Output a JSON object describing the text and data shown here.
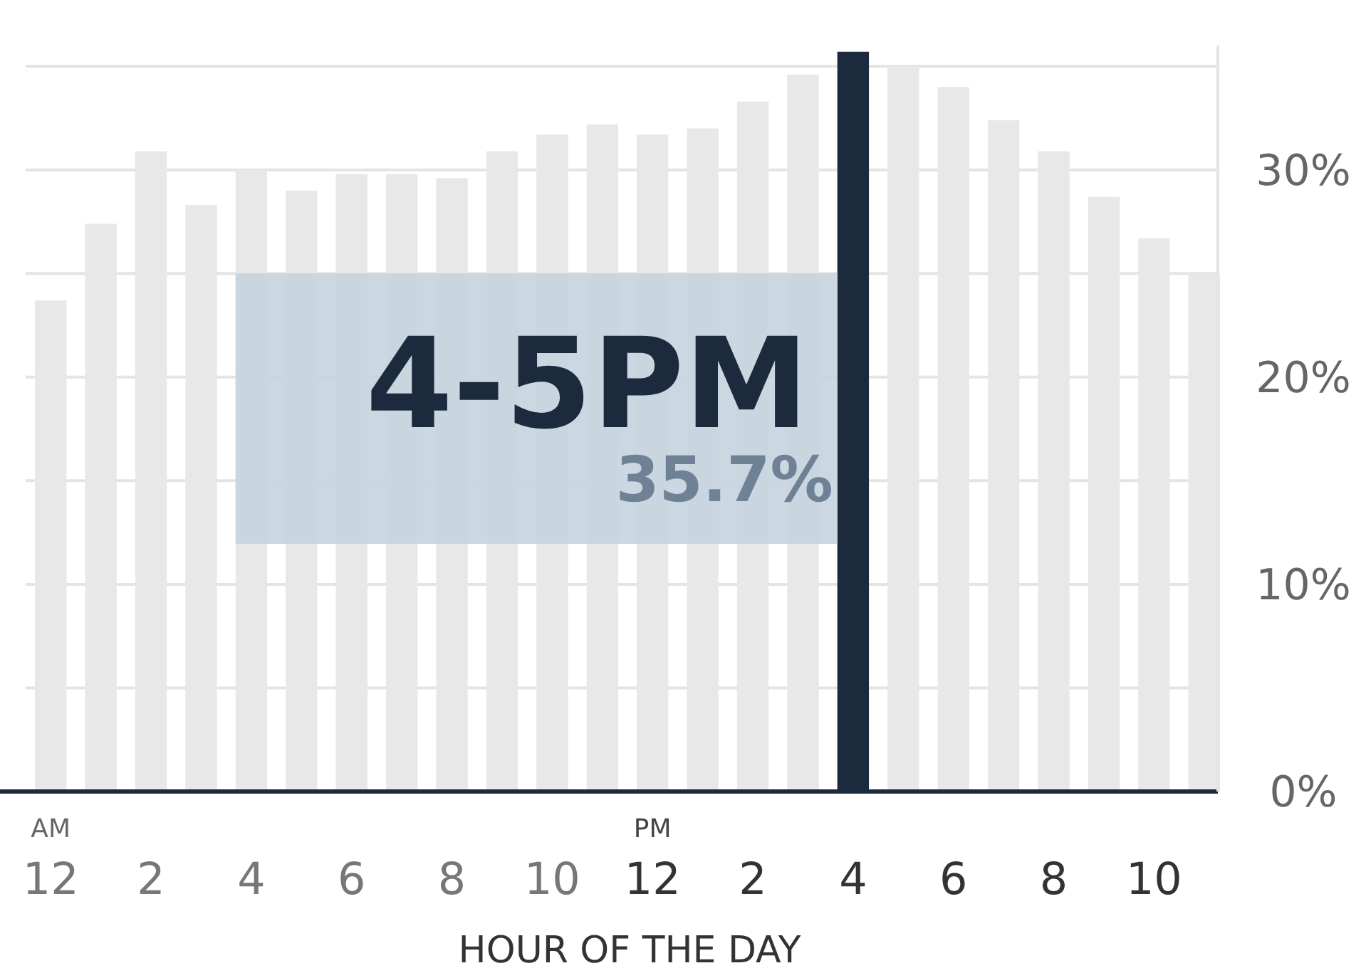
{
  "chart_data": {
    "type": "bar",
    "xlabel": "HOUR OF THE DAY",
    "categories": [
      "12",
      null,
      "2",
      null,
      "4",
      null,
      "6",
      null,
      "8",
      null,
      "10",
      null,
      "12",
      null,
      "2",
      null,
      "4",
      null,
      "6",
      null,
      "8",
      null,
      "10",
      null
    ],
    "values": [
      23.7,
      27.4,
      30.9,
      28.3,
      30.0,
      29.0,
      29.8,
      29.8,
      29.6,
      30.9,
      31.7,
      32.2,
      31.7,
      32.0,
      33.3,
      34.6,
      35.7,
      35.0,
      34.0,
      32.4,
      30.9,
      28.7,
      26.7,
      25.0
    ],
    "colors": [
      "#e8e8e8",
      "#e8e8e8",
      "#e8e8e8",
      "#e8e8e8",
      "#e8e8e8",
      "#e8e8e8",
      "#e8e8e8",
      "#e8e8e8",
      "#e8e8e8",
      "#e8e8e8",
      "#e8e8e8",
      "#e8e8e8",
      "#e8e8e8",
      "#e8e8e8",
      "#e8e8e8",
      "#e8e8e8",
      "#1b2a3d",
      "#e8e8e8",
      "#e8e8e8",
      "#e8e8e8",
      "#e8e8e8",
      "#e8e8e8",
      "#e8e8e8",
      "#e8e8e8"
    ],
    "annotations": [
      "AM",
      "PM",
      "4-5PM",
      "35.7%"
    ],
    "ylim": [
      0,
      36
    ],
    "yticks": [
      {
        "value": 0,
        "label": "0%"
      },
      {
        "value": 5,
        "label": null
      },
      {
        "value": 10,
        "label": "10%"
      },
      {
        "value": 15,
        "label": null
      },
      {
        "value": 20,
        "label": "20%"
      },
      {
        "value": 25,
        "label": null
      },
      {
        "value": 30,
        "label": "30%"
      },
      {
        "value": 35,
        "label": null
      }
    ],
    "grid": "y"
  }
}
